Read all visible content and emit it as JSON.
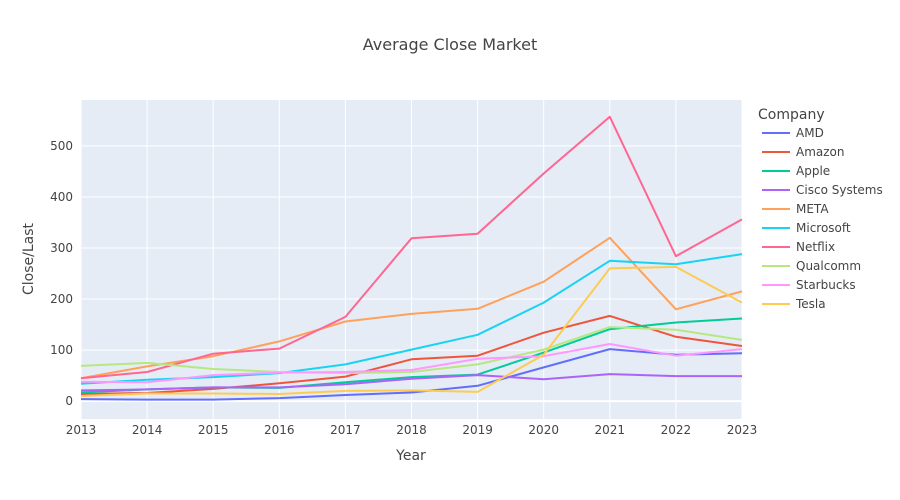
{
  "chart_data": {
    "type": "line",
    "title": "Average Close Market",
    "xlabel": "Year",
    "ylabel": "Close/Last",
    "xlim": [
      2013,
      2023
    ],
    "ylim": [
      -35,
      590
    ],
    "x_ticks": [
      2013,
      2014,
      2015,
      2016,
      2017,
      2018,
      2019,
      2020,
      2021,
      2022,
      2023
    ],
    "y_ticks": [
      0,
      100,
      200,
      300,
      400,
      500
    ],
    "grid": true,
    "legend_title": "Company",
    "legend_position": "right",
    "x": [
      2013,
      2014,
      2015,
      2016,
      2017,
      2018,
      2019,
      2020,
      2021,
      2022,
      2023
    ],
    "series": [
      {
        "name": "AMD",
        "color": "#636efa",
        "values": [
          4,
          3,
          3,
          6,
          12,
          17,
          30,
          66,
          102,
          91,
          94
        ]
      },
      {
        "name": "Amazon",
        "color": "#ef553b",
        "values": [
          14,
          16,
          24,
          35,
          48,
          82,
          89,
          134,
          167,
          126,
          108
        ]
      },
      {
        "name": "Apple",
        "color": "#00cc96",
        "values": [
          17,
          23,
          27,
          26,
          37,
          47,
          52,
          95,
          141,
          154,
          162
        ]
      },
      {
        "name": "Cisco Systems",
        "color": "#ab63fa",
        "values": [
          21,
          23,
          27,
          27,
          33,
          44,
          51,
          43,
          53,
          49,
          49
        ]
      },
      {
        "name": "META",
        "color": "#ffa15a",
        "values": [
          45,
          68,
          88,
          117,
          156,
          171,
          181,
          234,
          320,
          180,
          215
        ]
      },
      {
        "name": "Microsoft",
        "color": "#19d3f3",
        "values": [
          34,
          42,
          47,
          55,
          72,
          101,
          130,
          193,
          275,
          268,
          288
        ]
      },
      {
        "name": "Netflix",
        "color": "#ff6692",
        "values": [
          45,
          57,
          93,
          103,
          165,
          319,
          328,
          446,
          557,
          284,
          356
        ]
      },
      {
        "name": "Qualcomm",
        "color": "#b6e880",
        "values": [
          69,
          75,
          63,
          57,
          55,
          57,
          72,
          101,
          145,
          140,
          120
        ]
      },
      {
        "name": "Starbucks",
        "color": "#ff97ff",
        "values": [
          38,
          37,
          51,
          56,
          57,
          61,
          83,
          88,
          112,
          89,
          102
        ]
      },
      {
        "name": "Tesla",
        "color": "#fecb52",
        "values": [
          10,
          15,
          15,
          14,
          20,
          21,
          18,
          91,
          260,
          263,
          193
        ]
      }
    ]
  }
}
